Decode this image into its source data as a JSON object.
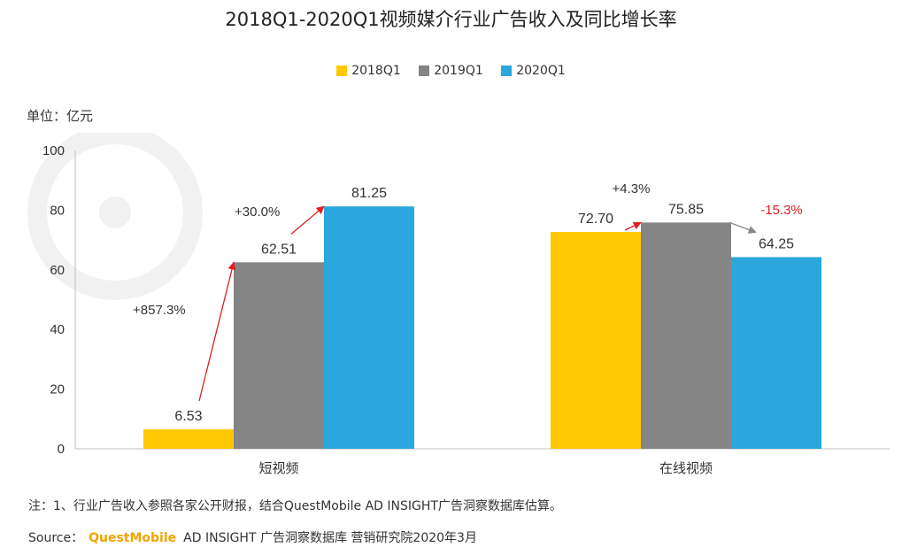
{
  "colors": {
    "2018Q1": "#FFC800",
    "2019Q1": "#858585",
    "2020Q1": "#2AA7DC",
    "positive_arrow": "#e02020",
    "negative_arrow": "#888888",
    "negative_label": "#e02020"
  },
  "chart_data": {
    "type": "bar",
    "title": "2018Q1-2020Q1视频媒介行业广告收入及同比增长率",
    "unit_label": "单位：亿元",
    "categories": [
      "短视频",
      "在线视频"
    ],
    "series": [
      {
        "name": "2018Q1",
        "values": [
          6.53,
          72.7
        ],
        "labels": [
          "6.53",
          "72.70"
        ]
      },
      {
        "name": "2019Q1",
        "values": [
          62.51,
          75.85
        ],
        "labels": [
          "62.51",
          "75.85"
        ]
      },
      {
        "name": "2020Q1",
        "values": [
          81.25,
          64.25
        ],
        "labels": [
          "81.25",
          "64.25"
        ]
      }
    ],
    "ylim": [
      0,
      100
    ],
    "yticks": [
      0,
      20,
      40,
      60,
      80,
      100
    ],
    "legend_position": "top-center",
    "growth_annotations": [
      {
        "category": 0,
        "from": 0,
        "to": 1,
        "text": "+857.3%",
        "negative": false
      },
      {
        "category": 0,
        "from": 1,
        "to": 2,
        "text": "+30.0%",
        "negative": false
      },
      {
        "category": 1,
        "from": 0,
        "to": 1,
        "text": "+4.3%",
        "negative": false
      },
      {
        "category": 1,
        "from": 1,
        "to": 2,
        "text": "-15.3%",
        "negative": true
      }
    ]
  },
  "footer": {
    "note": "注：1、行业广告收入参照各家公开财报，结合QuestMobile AD INSIGHT广告洞察数据库估算。",
    "source_label": "Source：",
    "source_brand": "QuestMobile",
    "source_rest": "AD INSIGHT 广告洞察数据库 营销研究院2020年3月"
  }
}
